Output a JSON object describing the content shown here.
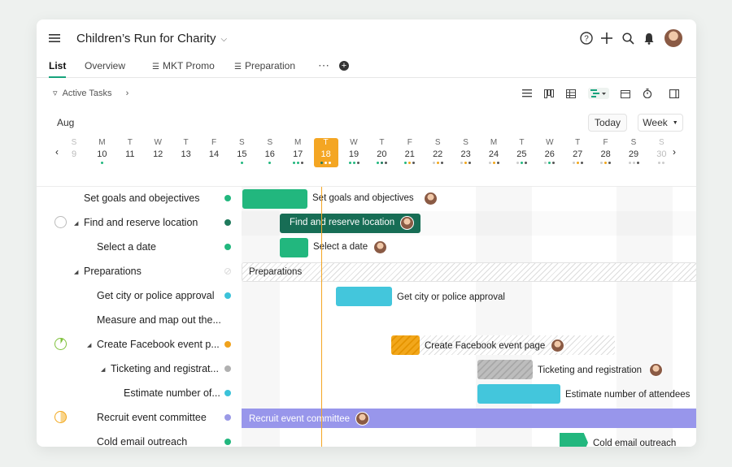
{
  "header": {
    "title": "Children’s Run for Charity"
  },
  "tabs": [
    {
      "label": "List"
    },
    {
      "label": "Overview"
    },
    {
      "label": "MKT Promo"
    },
    {
      "label": "Preparation"
    }
  ],
  "toolbar": {
    "filter_label": "Active Tasks"
  },
  "calendar": {
    "month": "Aug",
    "today_label": "Today",
    "view_label": "Week",
    "days": [
      {
        "w": "S",
        "n": "9"
      },
      {
        "w": "M",
        "n": "10"
      },
      {
        "w": "T",
        "n": "11"
      },
      {
        "w": "W",
        "n": "12"
      },
      {
        "w": "T",
        "n": "13"
      },
      {
        "w": "F",
        "n": "14"
      },
      {
        "w": "S",
        "n": "15"
      },
      {
        "w": "S",
        "n": "16"
      },
      {
        "w": "M",
        "n": "17"
      },
      {
        "w": "T",
        "n": "18"
      },
      {
        "w": "W",
        "n": "19"
      },
      {
        "w": "T",
        "n": "20"
      },
      {
        "w": "F",
        "n": "21"
      },
      {
        "w": "S",
        "n": "22"
      },
      {
        "w": "S",
        "n": "23"
      },
      {
        "w": "M",
        "n": "24"
      },
      {
        "w": "T",
        "n": "25"
      },
      {
        "w": "W",
        "n": "26"
      },
      {
        "w": "T",
        "n": "27"
      },
      {
        "w": "F",
        "n": "28"
      },
      {
        "w": "S",
        "n": "29"
      },
      {
        "w": "S",
        "n": "30"
      }
    ]
  },
  "tasks": [
    {
      "label": "Set goals and obejectives",
      "bar_label": "Set goals and objectives",
      "status_color": "#22b77e"
    },
    {
      "label": "Find and reserve location",
      "bar_label": "Find and reserve location",
      "status_color": "#1f7a5c"
    },
    {
      "label": "Select a date",
      "bar_label": "Select a date",
      "status_color": "#22b77e"
    },
    {
      "label": "Preparations",
      "bar_label": "Preparations",
      "status_color": "#cfcfcf"
    },
    {
      "label": "Get city or police approval",
      "bar_label": "Get city or police approval",
      "status_color": "#3bc2d9"
    },
    {
      "label": "Measure and map out the...",
      "bar_label": "",
      "status_color": ""
    },
    {
      "label": "Create Facebook event p...",
      "bar_label": "Create Facebook event page",
      "status_color": "#f0a21c"
    },
    {
      "label": "Ticketing and registrat...",
      "bar_label": "Ticketing and registration",
      "status_color": "#b0b0b0"
    },
    {
      "label": "Estimate number of...",
      "bar_label": "Estimate number of attendees",
      "status_color": "#3bc2d9"
    },
    {
      "label": "Recruit event committee",
      "bar_label": "Recruit event committee",
      "status_color": "#9b9ae6"
    },
    {
      "label": "Cold email outreach",
      "bar_label": "Cold email outreach",
      "status_color": "#22b77e"
    }
  ],
  "colors": {
    "green": "#22b77e",
    "dark_green": "#176d55",
    "cyan": "#43c6dc",
    "orange": "#f2a71b",
    "gray": "#b4b4b4",
    "purple": "#9896eb",
    "today": "#f4a623"
  }
}
